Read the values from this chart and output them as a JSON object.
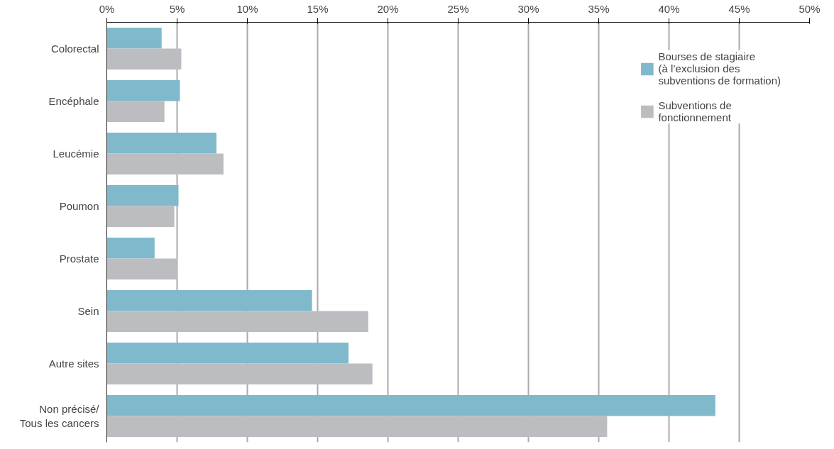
{
  "chart_data": {
    "type": "bar",
    "orientation": "horizontal",
    "categories": [
      "Colorectal",
      "Encéphale",
      "Leucémie",
      "Poumon",
      "Prostate",
      "Sein",
      "Autre sites",
      "Non précisé/\nTous les cancers"
    ],
    "series": [
      {
        "name": "Bourses de stagiaire\n(à l’exclusion des\nsubventions de formation)",
        "color": "#80b9cc",
        "values": [
          3.9,
          5.2,
          7.8,
          5.1,
          3.4,
          14.6,
          17.2,
          43.3
        ]
      },
      {
        "name": "Subventions de\nfonctionnement",
        "color": "#bcbdc0",
        "values": [
          5.3,
          4.1,
          8.3,
          4.8,
          5.0,
          18.6,
          18.9,
          35.6
        ]
      }
    ],
    "xlim": [
      0,
      50
    ],
    "xticks": [
      {
        "value": 0,
        "label": "0%"
      },
      {
        "value": 5,
        "label": "5%"
      },
      {
        "value": 10,
        "label": "10%"
      },
      {
        "value": 15,
        "label": "15%"
      },
      {
        "value": 20,
        "label": "20%"
      },
      {
        "value": 25,
        "label": "25%"
      },
      {
        "value": 30,
        "label": "30%"
      },
      {
        "value": 35,
        "label": "35%"
      },
      {
        "value": 40,
        "label": "40%"
      },
      {
        "value": 45,
        "label": "45%"
      },
      {
        "value": 50,
        "label": "50%"
      }
    ],
    "grid": "x",
    "legend": "top right"
  }
}
